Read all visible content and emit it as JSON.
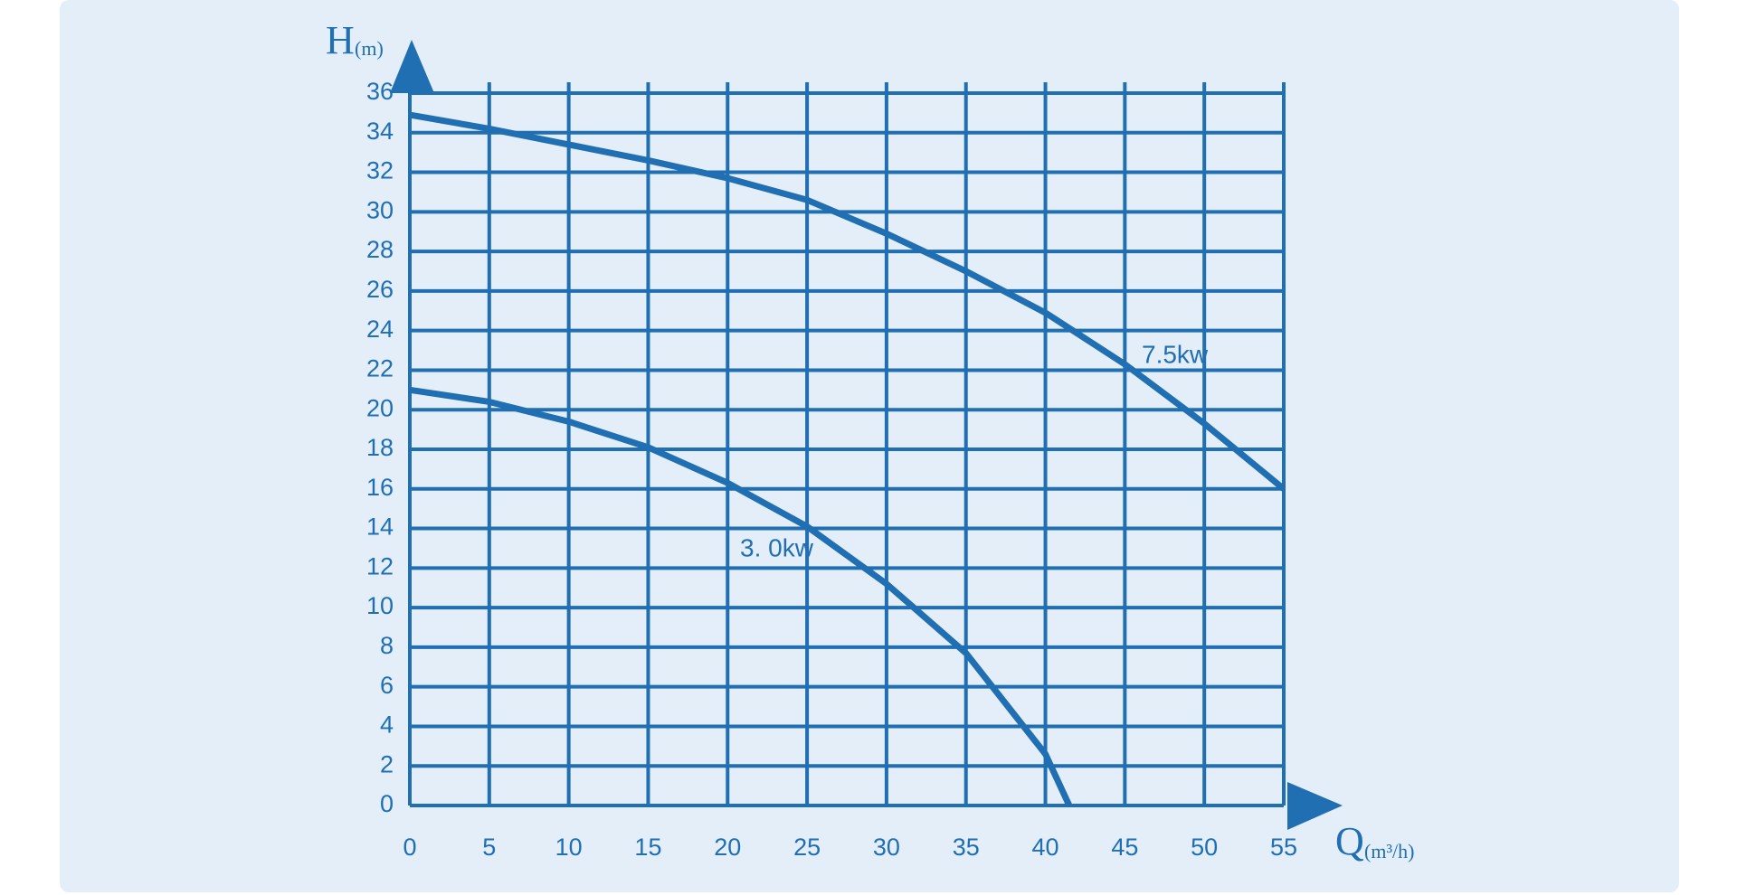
{
  "chart_data": {
    "type": "line",
    "y_label": "H",
    "y_unit": "(m)",
    "x_label": "Q",
    "x_unit": "(m³/h)",
    "xlim": [
      0,
      55
    ],
    "xticks": [
      0,
      5,
      10,
      15,
      20,
      25,
      30,
      35,
      40,
      45,
      50,
      55
    ],
    "ylim": [
      0,
      36
    ],
    "yticks": [
      0,
      2,
      4,
      6,
      8,
      10,
      12,
      14,
      16,
      18,
      20,
      22,
      24,
      26,
      28,
      30,
      32,
      34,
      36
    ],
    "grid": true,
    "grid_color": "#1f6fb2",
    "series": [
      {
        "name": "7.5kw",
        "color": "#1f6fb2",
        "x": [
          0,
          5,
          10,
          15,
          20,
          25,
          30,
          35,
          40,
          45,
          50,
          55
        ],
        "values": [
          34.9,
          34.2,
          33.4,
          32.6,
          31.7,
          30.6,
          28.9,
          27,
          24.9,
          22.3,
          19.3,
          16
        ]
      },
      {
        "name": "3. 0kw",
        "color": "#1f6fb2",
        "x": [
          0,
          5,
          10,
          15,
          20,
          25,
          30,
          35,
          40,
          41.5
        ],
        "values": [
          21,
          20.4,
          19.4,
          18.1,
          16.3,
          14.1,
          11.2,
          7.7,
          2.6,
          0
        ]
      }
    ]
  }
}
